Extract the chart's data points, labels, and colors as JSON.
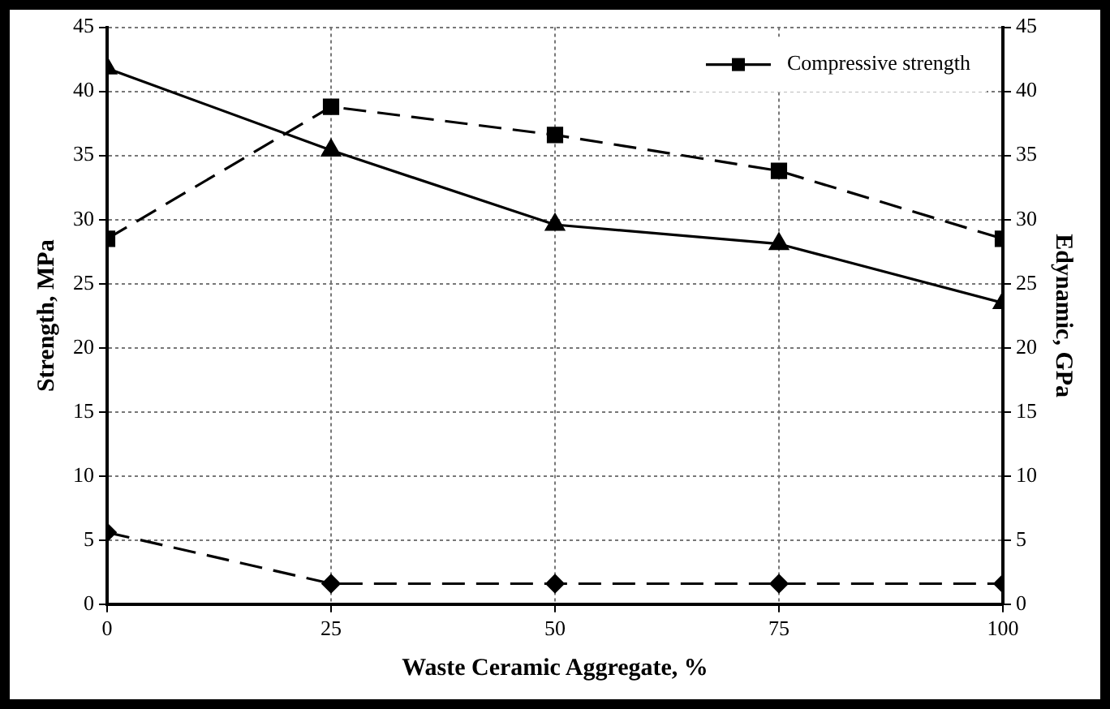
{
  "chart_data": {
    "type": "line",
    "xlabel": "Waste Ceramic Aggregate, %",
    "ylabel": "Strength, MPa",
    "y2label": "Edynamic, GPa",
    "x": [
      0,
      25,
      50,
      75,
      100
    ],
    "series": [
      {
        "name": "Compressive strength",
        "color": "#000000",
        "values": [
          28.5,
          38.8,
          36.6,
          33.8,
          28.5
        ],
        "marker": "square",
        "line_style": "dashed"
      },
      {
        "color": "#000000",
        "values": [
          41.8,
          35.4,
          29.6,
          28.1,
          23.5
        ],
        "marker": "triangle",
        "line_style": "solid"
      },
      {
        "color": "#000000",
        "values": [
          5.6,
          1.6,
          1.6,
          1.6,
          1.6
        ],
        "marker": "diamond",
        "line_style": "dashed"
      }
    ],
    "xlim": [
      0,
      100
    ],
    "xticks": [
      0,
      25,
      50,
      75,
      100
    ],
    "ylim": [
      0,
      45
    ],
    "yticks": [
      0,
      5,
      10,
      15,
      20,
      25,
      30,
      35,
      40,
      45
    ],
    "y2lim": [
      0,
      45
    ],
    "y2ticks": [
      0,
      5,
      10,
      15,
      20,
      25,
      30,
      35,
      40,
      45
    ],
    "grid": true,
    "legend": "top right"
  }
}
